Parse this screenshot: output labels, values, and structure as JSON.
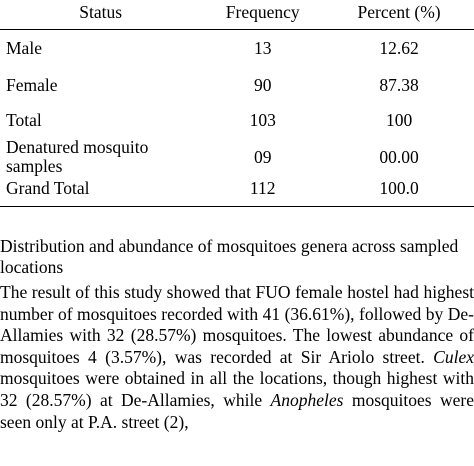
{
  "table": {
    "headers": {
      "status": "Status",
      "frequency": "Frequency",
      "percent": "Percent (%)"
    },
    "rows": [
      {
        "status": "Male",
        "frequency": "13",
        "percent": "12.62"
      },
      {
        "status": "Female",
        "frequency": "90",
        "percent": "87.38"
      },
      {
        "status": "Total",
        "frequency": "103",
        "percent": "100"
      },
      {
        "status": "Denatured mosquito samples",
        "frequency": "09",
        "percent": "00.00"
      },
      {
        "status": "Grand Total",
        "frequency": "112",
        "percent": "100.0"
      }
    ]
  },
  "section": {
    "heading": "Distribution and abundance of mosquitoes genera across sampled locations",
    "paragraph": {
      "part1": "The result of this study showed that FUO female hostel had highest number of mosquitoes recorded with 41 (36.61%), followed by De-Allamies with 32 (28.57%) mosquitoes. The lowest abundance of mosquitoes 4 (3.57%), was recorded at Sir Ariolo street. ",
      "genus1": "Culex",
      "part2": " mosquitoes were obtained in all the locations, though highest with 32 (28.57%) at De-Allamies, while ",
      "genus2": "Anopheles",
      "part3": " mosquitoes were seen only at P.A. street (2),"
    }
  }
}
